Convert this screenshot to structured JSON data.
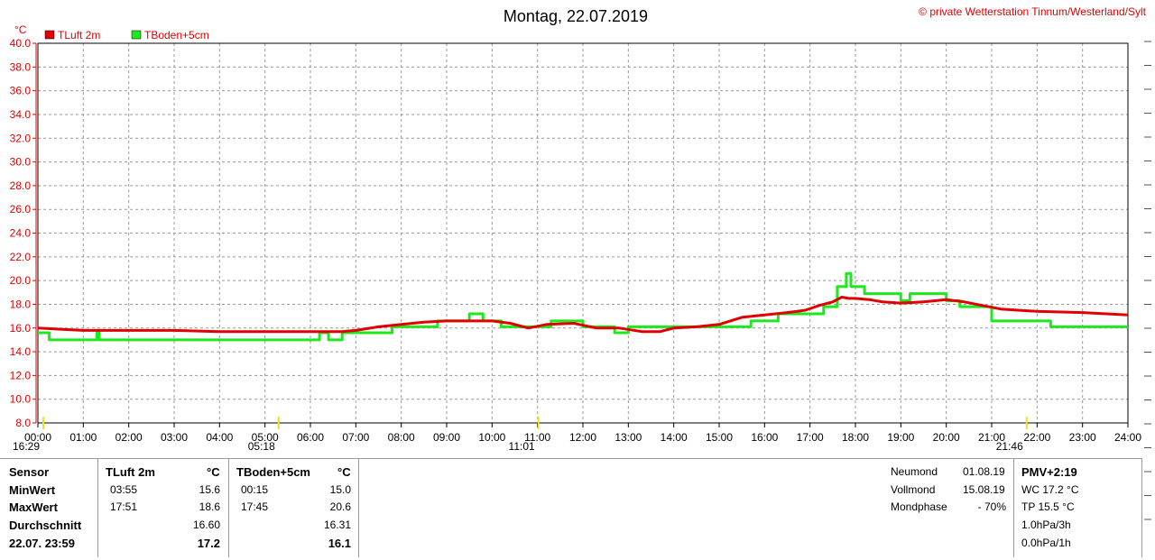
{
  "title": "Montag, 22.07.2019",
  "copyright": "© private Wetterstation Tinnum/Westerland/Sylt",
  "colors": {
    "tluft": "#e00000",
    "tboden": "#1ee81e",
    "grid": "#9a9a9a",
    "axis": "#e00000"
  },
  "chart_data": {
    "type": "line",
    "ylabel": "°C",
    "ylim": [
      8,
      40
    ],
    "xlim": [
      0,
      24
    ],
    "grid": true,
    "legend_placement": "top-left",
    "y_ticks": [
      "8.0",
      "10.0",
      "12.0",
      "14.0",
      "16.0",
      "18.0",
      "20.0",
      "22.0",
      "24.0",
      "26.0",
      "28.0",
      "30.0",
      "32.0",
      "34.0",
      "36.0",
      "38.0",
      "40.0"
    ],
    "x_ticks": [
      "00:00",
      "01:00",
      "02:00",
      "03:00",
      "04:00",
      "05:00",
      "06:00",
      "07:00",
      "08:00",
      "09:00",
      "10:00",
      "11:00",
      "12:00",
      "13:00",
      "14:00",
      "15:00",
      "16:00",
      "17:00",
      "18:00",
      "19:00",
      "20:00",
      "21:00",
      "22:00",
      "23:00",
      "24:00"
    ],
    "series": [
      {
        "name": "TLuft 2m",
        "x": [
          0,
          0.5,
          1,
          2,
          3,
          4,
          5,
          6,
          6.7,
          7,
          7.5,
          8,
          8.5,
          9,
          9.5,
          10,
          10.4,
          10.8,
          11.2,
          11.8,
          12.3,
          12.8,
          13.3,
          13.7,
          14,
          14.5,
          15,
          15.5,
          16,
          16.5,
          16.9,
          17.2,
          17.5,
          17.7,
          17.85,
          18,
          18.3,
          18.6,
          19,
          19.5,
          20,
          20.4,
          20.8,
          21.2,
          22,
          23,
          24
        ],
        "y": [
          16.0,
          15.9,
          15.8,
          15.8,
          15.8,
          15.7,
          15.7,
          15.7,
          15.7,
          15.8,
          16.1,
          16.3,
          16.5,
          16.6,
          16.6,
          16.6,
          16.4,
          16.0,
          16.3,
          16.4,
          16.0,
          16.0,
          15.7,
          15.7,
          16.0,
          16.1,
          16.3,
          16.9,
          17.1,
          17.3,
          17.5,
          17.9,
          18.2,
          18.6,
          18.5,
          18.5,
          18.4,
          18.2,
          18.1,
          18.2,
          18.4,
          18.2,
          17.9,
          17.6,
          17.4,
          17.3,
          17.1
        ]
      },
      {
        "name": "TBoden+5cm",
        "x": [
          0,
          0.25,
          0.25,
          1.3,
          1.3,
          1.35,
          1.35,
          6.2,
          6.2,
          6.4,
          6.4,
          6.7,
          6.7,
          7.8,
          7.8,
          8.8,
          8.8,
          9.5,
          9.5,
          9.8,
          9.8,
          10.2,
          10.2,
          11.3,
          11.3,
          12,
          12,
          12.7,
          12.7,
          13,
          13,
          14,
          14,
          14.4,
          14.4,
          15.7,
          15.7,
          16.3,
          16.3,
          16.8,
          16.8,
          17.3,
          17.3,
          17.6,
          17.6,
          17.8,
          17.8,
          17.9,
          17.9,
          18.2,
          18.2,
          19,
          19,
          19.2,
          19.2,
          20,
          20,
          20.3,
          20.3,
          21,
          21,
          22.3,
          22.3,
          23,
          23,
          24
        ],
        "y": [
          15.6,
          15.6,
          15.0,
          15.0,
          15.6,
          15.6,
          15.0,
          15.0,
          15.6,
          15.6,
          15.0,
          15.0,
          15.6,
          15.6,
          16.1,
          16.1,
          16.6,
          16.6,
          17.2,
          17.2,
          16.6,
          16.6,
          16.1,
          16.1,
          16.6,
          16.6,
          16.1,
          16.1,
          15.6,
          15.6,
          16.1,
          16.1,
          16.1,
          16.1,
          16.1,
          16.1,
          16.6,
          16.6,
          17.2,
          17.2,
          17.2,
          17.2,
          17.8,
          17.8,
          19.5,
          19.5,
          20.6,
          20.6,
          19.5,
          19.5,
          18.9,
          18.9,
          18.3,
          18.3,
          18.9,
          18.9,
          18.3,
          18.3,
          17.8,
          17.8,
          16.6,
          16.6,
          16.1,
          16.1,
          16.1,
          16.1
        ]
      }
    ],
    "markers": [
      {
        "label": "16:29",
        "x": 0.12
      },
      {
        "label": "05:18",
        "x": 5.3
      },
      {
        "label": "11:01",
        "x": 11.02
      },
      {
        "label": "21:46",
        "x": 21.77
      }
    ]
  },
  "table": {
    "labels": {
      "sensor": "Sensor",
      "min": "MinWert",
      "max": "MaxWert",
      "avg": "Durchschnitt",
      "last": "22.07. 23:59"
    },
    "tluft": {
      "header": "TLuft 2m",
      "unit": "°C",
      "min_time": "03:55",
      "min_val": "15.6",
      "max_time": "17:51",
      "max_val": "18.6",
      "avg": "16.60",
      "last": "17.2"
    },
    "tboden": {
      "header": "TBoden+5cm",
      "unit": "°C",
      "min_time": "00:15",
      "min_val": "15.0",
      "max_time": "17:45",
      "max_val": "20.6",
      "avg": "16.31",
      "last": "16.1"
    }
  },
  "moon": {
    "neumond_label": "Neumond",
    "neumond_date": "01.08.19",
    "vollmond_label": "Vollmond",
    "vollmond_date": "15.08.19",
    "phase_label": "Mondphase",
    "phase_value": "- 70%"
  },
  "pmv": {
    "title": "PMV+2:19",
    "wc": "WC 17.2 °C",
    "tp": "TP 15.5 °C",
    "p3h": "1.0hPa/3h",
    "p1h": "0.0hPa/1h"
  }
}
